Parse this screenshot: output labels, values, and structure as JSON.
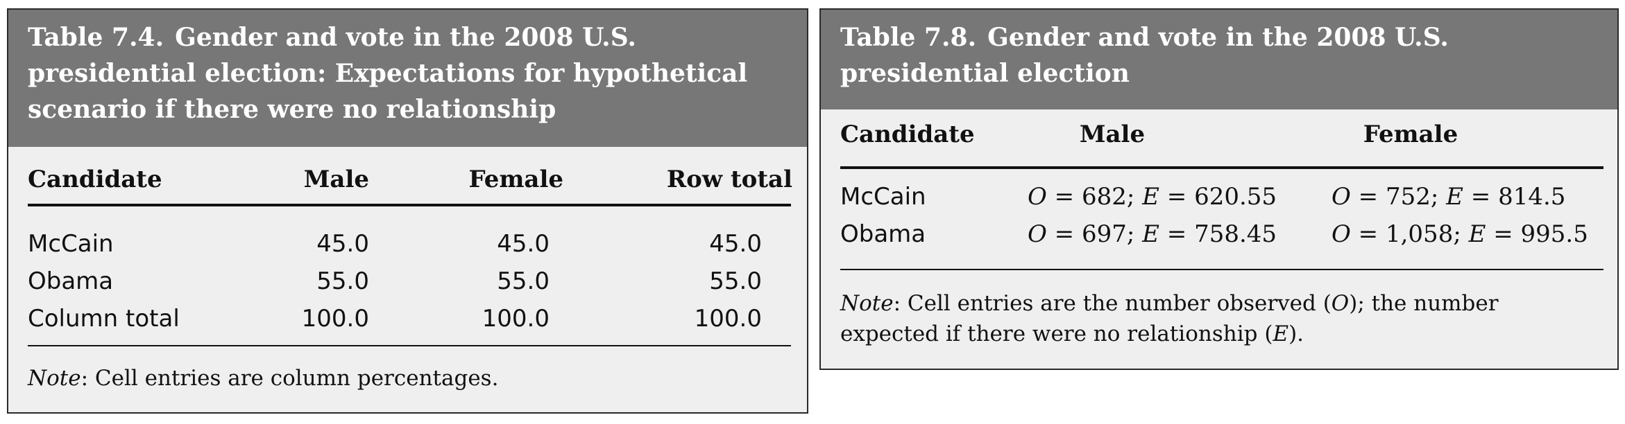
{
  "table1": {
    "number": "Table 7.4.",
    "title": "Gender and vote in the 2008 U.S. presidential election: Expectations for hypothetical scenario if there were no relationship",
    "headers": [
      "Candidate",
      "Male",
      "Female",
      "Row total"
    ],
    "rows": [
      [
        "McCain",
        "45.0",
        "45.0",
        "45.0"
      ],
      [
        "Obama",
        "55.0",
        "55.0",
        "55.0"
      ],
      [
        "Column total",
        "100.0",
        "100.0",
        "100.0"
      ]
    ],
    "note_label": "Note",
    "note_text": ": Cell entries are column percentages."
  },
  "table2": {
    "number": "Table 7.8.",
    "title": "Gender and vote in the 2008 U.S. presidential election",
    "headers": [
      "Candidate",
      "Male",
      "Female"
    ],
    "rows": [
      {
        "candidate": "McCain",
        "male_o": "682",
        "male_e": "620.55",
        "female_o": "752",
        "female_e": "814.5"
      },
      {
        "candidate": "Obama",
        "male_o": "697",
        "male_e": "758.45",
        "female_o": "1,058",
        "female_e": "995.5"
      }
    ],
    "o_symbol": "O",
    "e_symbol": "E",
    "note_label": "Note",
    "note_text_1": ": Cell entries are the number observed (",
    "note_text_2": "); the number expected if there were no relationship (",
    "note_text_3": ")."
  }
}
